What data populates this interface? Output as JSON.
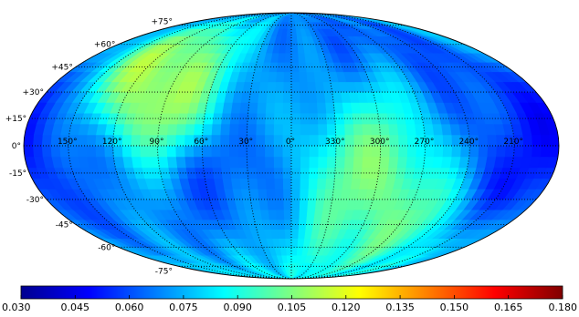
{
  "chart_data": {
    "type": "heatmap",
    "projection": "mollweide",
    "graticule": "dotted",
    "grid": true,
    "lon_ticks": [
      "150°",
      "120°",
      "90°",
      "60°",
      "30°",
      "0°",
      "330°",
      "300°",
      "270°",
      "240°",
      "210°"
    ],
    "lat_ticks": [
      "+75°",
      "+60°",
      "+45°",
      "+30°",
      "+15°",
      "0°",
      "-15°",
      "-30°",
      "-45°",
      "-60°",
      "-75°"
    ],
    "colorbar": {
      "ticks": [
        "0.030",
        "0.045",
        "0.060",
        "0.075",
        "0.090",
        "0.105",
        "0.120",
        "0.135",
        "0.150",
        "0.165",
        "0.180"
      ],
      "range": [
        0.03,
        0.18
      ],
      "colormap": "jet",
      "placement": "bottom"
    },
    "value_range_shown": [
      0.045,
      0.125
    ],
    "features": [
      {
        "lon": 95,
        "lat": 40,
        "value": 0.12
      },
      {
        "lon": 15,
        "lat": 40,
        "value": 0.07
      },
      {
        "lon": 315,
        "lat": 60,
        "value": 0.055
      },
      {
        "lon": 240,
        "lat": 20,
        "value": 0.06
      },
      {
        "lon": 180,
        "lat": 0,
        "value": 0.05
      },
      {
        "lon": 35,
        "lat": -30,
        "value": 0.055
      },
      {
        "lon": 125,
        "lat": -30,
        "value": 0.07
      },
      {
        "lon": 300,
        "lat": -25,
        "value": 0.11
      },
      {
        "lon": 300,
        "lat": 10,
        "value": 0.1
      },
      {
        "lon": 345,
        "lat": -60,
        "value": 0.09
      }
    ]
  }
}
